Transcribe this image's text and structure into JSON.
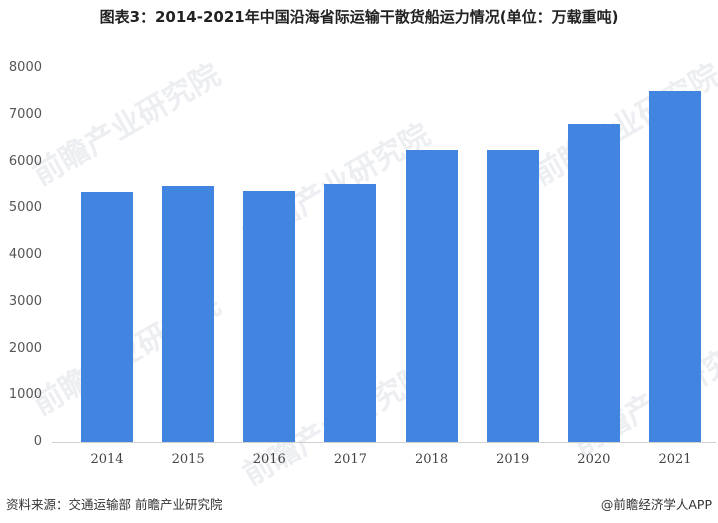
{
  "title": "图表3：2014-2021年中国沿海省际运输干散货船运力情况(单位：万载重吨)",
  "source": "资料来源：交通运输部 前瞻产业研究院",
  "credit": "@前瞻经济学人APP",
  "watermark": "前瞻产业研究院",
  "colors": {
    "bar": "#4285e0",
    "axis": "#d0d0d0"
  },
  "chart_data": {
    "type": "bar",
    "title": "图表3：2014-2021年中国沿海省际运输干散货船运力情况(单位：万载重吨)",
    "xlabel": "",
    "ylabel": "万载重吨",
    "categories": [
      "2014",
      "2015",
      "2016",
      "2017",
      "2018",
      "2019",
      "2020",
      "2021"
    ],
    "values": [
      5350,
      5480,
      5370,
      5520,
      6250,
      6250,
      6800,
      7510
    ],
    "ylim": [
      0,
      8000
    ],
    "yticks": [
      "0",
      "1000",
      "2000",
      "3000",
      "4000",
      "5000",
      "6000",
      "7000",
      "8000"
    ],
    "grid": false,
    "legend": null
  }
}
